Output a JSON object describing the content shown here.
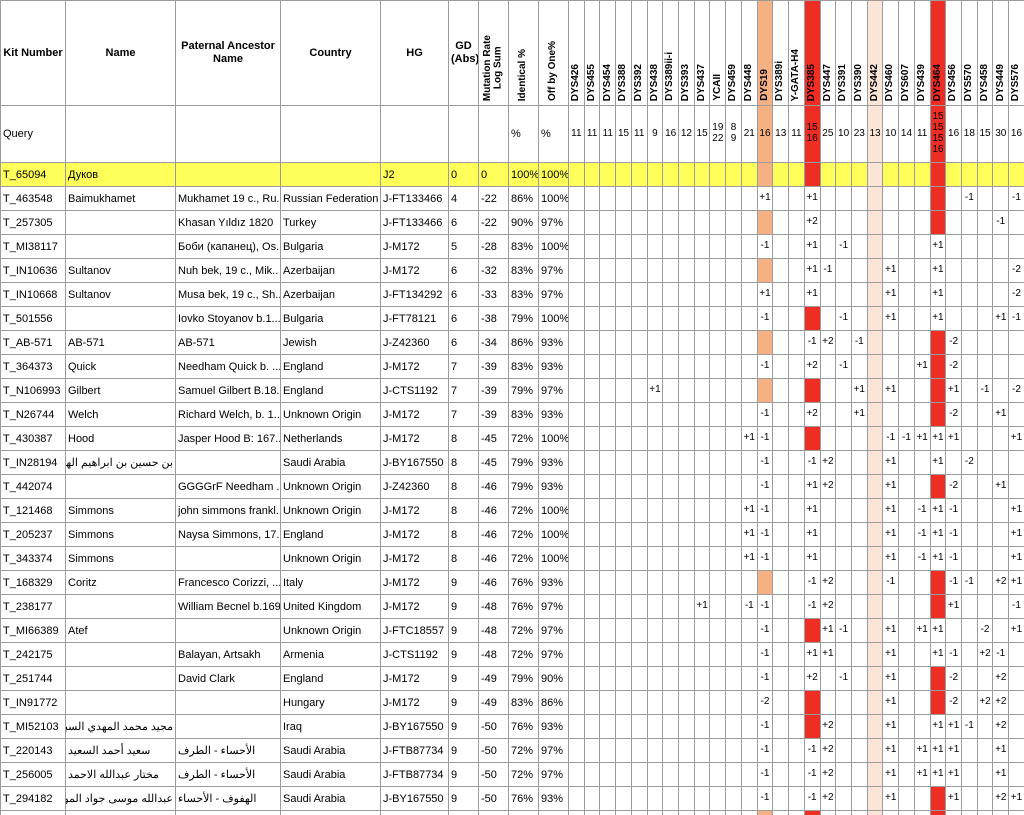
{
  "table": {
    "columns": {
      "kit": "Kit Number",
      "name": "Name",
      "ancestor": "Paternal Ancestor\nName",
      "country": "Country",
      "hg": "HG",
      "gd": "GD\n(Abs)",
      "stats": [
        "Mutation Rate\nLog Sum",
        "Identical %",
        "Off by One%"
      ]
    },
    "markers": [
      "DYS426",
      "DYS455",
      "DYS454",
      "DYS388",
      "DYS392",
      "DYS438",
      "DYS389ii-i",
      "DYS393",
      "DYS437",
      "YCAII",
      "DYS459",
      "DYS448",
      "DYS19",
      "DYS389i",
      "Y-GATA-H4",
      "DYS385",
      "DYS447",
      "DYS391",
      "DYS390",
      "DYS442",
      "DYS460",
      "DYS607",
      "DYS439",
      "DYS464",
      "DYS456",
      "DYS570",
      "DYS458",
      "DYS449",
      "DYS576"
    ],
    "marker_colors": {
      "DYS19": "#f5b183",
      "DYS385": "#ee2e24",
      "DYS442": "#fbe5d6",
      "DYS464": "#ee2e24"
    },
    "query": {
      "label": "Query",
      "identical_unit": "%",
      "offby_unit": "%",
      "values": [
        "11",
        "11",
        "11",
        "15",
        "11",
        "9",
        "16",
        "12",
        "15",
        "19\n22",
        "8\n9",
        "21",
        "16",
        "13",
        "11",
        "15\n16",
        "25",
        "10",
        "23",
        "13",
        "10",
        "14",
        "11",
        "15\n15\n15\n16",
        "16",
        "18",
        "15",
        "30",
        "16"
      ]
    },
    "rows": [
      {
        "kit": "T_65094",
        "name": "Дуков",
        "anc": "",
        "country": "",
        "hg": "J2",
        "gd": "0",
        "log": "0",
        "id": "100%",
        "off": "100%",
        "highlight": true,
        "diffs": {}
      },
      {
        "kit": "T_463548",
        "name": "Baimukhamet",
        "anc": "Mukhamet 19 c., Ru..",
        "country": "Russian Federation",
        "hg": "J-FT133466",
        "gd": "4",
        "log": "-22",
        "id": "86%",
        "off": "100%",
        "diffs": {
          "DYS19": "+1",
          "DYS385": "+1",
          "DYS570": "-1",
          "DYS576": "-1"
        }
      },
      {
        "kit": "T_257305",
        "name": "",
        "anc": "Khasan Yıldız 1820",
        "country": "Turkey",
        "hg": "J-FT133466",
        "gd": "6",
        "log": "-22",
        "id": "90%",
        "off": "97%",
        "diffs": {
          "DYS385": "+2",
          "DYS449": "-1"
        }
      },
      {
        "kit": "T_MI38117",
        "name": "",
        "anc": "Боби (капанец), Os..",
        "country": "Bulgaria",
        "hg": "J-M172",
        "gd": "5",
        "log": "-28",
        "id": "83%",
        "off": "100%",
        "diffs": {
          "DYS19": "-1",
          "DYS385": "+1",
          "DYS391": "-1",
          "DYS464": "+1"
        }
      },
      {
        "kit": "T_IN10636",
        "name": "Sultanov",
        "anc": "Nuh bek, 19 c., Mik..",
        "country": "Azerbaijan",
        "hg": "J-M172",
        "gd": "6",
        "log": "-32",
        "id": "83%",
        "off": "97%",
        "diffs": {
          "DYS385": "+1",
          "DYS447": "-1",
          "DYS460": "+1",
          "DYS464": "+1",
          "DYS576": "-2"
        }
      },
      {
        "kit": "T_IN10668",
        "name": "Sultanov",
        "anc": "Musa bek, 19 c., Sh..",
        "country": "Azerbaijan",
        "hg": "J-FT134292",
        "gd": "6",
        "log": "-33",
        "id": "83%",
        "off": "97%",
        "diffs": {
          "DYS19": "+1",
          "DYS385": "+1",
          "DYS460": "+1",
          "DYS464": "+1",
          "DYS576": "-2"
        }
      },
      {
        "kit": "T_501556",
        "name": "",
        "anc": "Iovko Stoyanov b.1...",
        "country": "Bulgaria",
        "hg": "J-FT78121",
        "gd": "6",
        "log": "-38",
        "id": "79%",
        "off": "100%",
        "diffs": {
          "DYS19": "-1",
          "DYS391": "-1",
          "DYS460": "+1",
          "DYS464": "+1",
          "DYS449": "+1",
          "DYS576": "-1"
        }
      },
      {
        "kit": "T_AB-571",
        "name": "AB-571",
        "anc": "AB-571",
        "country": "Jewish",
        "hg": "J-Z42360",
        "gd": "6",
        "log": "-34",
        "id": "86%",
        "off": "93%",
        "diffs": {
          "DYS385": "-1",
          "DYS447": "+2",
          "DYS390": "-1",
          "DYS456": "-2"
        }
      },
      {
        "kit": "T_364373",
        "name": "Quick",
        "anc": "Needham Quick b. ...",
        "country": "England",
        "hg": "J-M172",
        "gd": "7",
        "log": "-39",
        "id": "83%",
        "off": "93%",
        "diffs": {
          "DYS19": "-1",
          "DYS391": "-1",
          "DYS385": "+2",
          "DYS439": "+1",
          "DYS456": "-2"
        }
      },
      {
        "kit": "T_N106993",
        "name": "Gilbert",
        "anc": "Samuel Gilbert B.18...",
        "country": "England",
        "hg": "J-CTS1192",
        "gd": "7",
        "log": "-39",
        "id": "79%",
        "off": "97%",
        "diffs": {
          "DYS438": "+1",
          "DYS390": "+1",
          "DYS460": "+1",
          "DYS456": "+1",
          "DYS458": "-1",
          "DYS576": "-2"
        }
      },
      {
        "kit": "T_N26744",
        "name": "Welch",
        "anc": "Richard Welch, b. 1...",
        "country": "Unknown Origin",
        "hg": "J-M172",
        "gd": "7",
        "log": "-39",
        "id": "83%",
        "off": "93%",
        "diffs": {
          "DYS19": "-1",
          "DYS385": "+2",
          "DYS390": "+1",
          "DYS456": "-2",
          "DYS449": "+1"
        }
      },
      {
        "kit": "T_430387",
        "name": "Hood",
        "anc": "Jasper Hood B: 167...",
        "country": "Netherlands",
        "hg": "J-M172",
        "gd": "8",
        "log": "-45",
        "id": "72%",
        "off": "100%",
        "diffs": {
          "DYS448": "+1",
          "DYS19": "-1",
          "DYS460": "-1",
          "DYS607": "-1",
          "DYS439": "+1",
          "DYS464": "+1",
          "DYS456": "+1",
          "DYS576": "+1"
        }
      },
      {
        "kit": "T_IN28194",
        "name": "بن حسين بن ابراهيم الهلالي ...",
        "anc": "",
        "country": "Saudi Arabia",
        "hg": "J-BY167550",
        "gd": "8",
        "log": "-45",
        "id": "79%",
        "off": "93%",
        "diffs": {
          "DYS19": "-1",
          "DYS385": "-1",
          "DYS447": "+2",
          "DYS460": "+1",
          "DYS464": "+1",
          "DYS570": "-2"
        }
      },
      {
        "kit": "T_442074",
        "name": "",
        "anc": "GGGGrF Needham ...",
        "country": "Unknown Origin",
        "hg": "J-Z42360",
        "gd": "8",
        "log": "-46",
        "id": "79%",
        "off": "93%",
        "diffs": {
          "DYS19": "-1",
          "DYS385": "+1",
          "DYS447": "+2",
          "DYS460": "+1",
          "DYS456": "-2",
          "DYS449": "+1"
        }
      },
      {
        "kit": "T_121468",
        "name": "Simmons",
        "anc": "john simmons frankl...",
        "country": "Unknown Origin",
        "hg": "J-M172",
        "gd": "8",
        "log": "-46",
        "id": "72%",
        "off": "100%",
        "diffs": {
          "DYS448": "+1",
          "DYS19": "-1",
          "DYS385": "+1",
          "DYS460": "+1",
          "DYS439": "-1",
          "DYS464": "+1",
          "DYS456": "-1",
          "DYS576": "+1"
        }
      },
      {
        "kit": "T_205237",
        "name": "Simmons",
        "anc": "Naysa Simmons, 17...",
        "country": "England",
        "hg": "J-M172",
        "gd": "8",
        "log": "-46",
        "id": "72%",
        "off": "100%",
        "diffs": {
          "DYS448": "+1",
          "DYS19": "-1",
          "DYS385": "+1",
          "DYS460": "+1",
          "DYS439": "-1",
          "DYS464": "+1",
          "DYS456": "-1",
          "DYS576": "+1"
        }
      },
      {
        "kit": "T_343374",
        "name": "Simmons",
        "anc": "",
        "country": "Unknown Origin",
        "hg": "J-M172",
        "gd": "8",
        "log": "-46",
        "id": "72%",
        "off": "100%",
        "diffs": {
          "DYS448": "+1",
          "DYS19": "-1",
          "DYS385": "+1",
          "DYS460": "+1",
          "DYS439": "-1",
          "DYS464": "+1",
          "DYS456": "-1",
          "DYS576": "+1"
        }
      },
      {
        "kit": "T_168329",
        "name": "Coritz",
        "anc": "Francesco Corizzi, ...",
        "country": "Italy",
        "hg": "J-M172",
        "gd": "9",
        "log": "-46",
        "id": "76%",
        "off": "93%",
        "diffs": {
          "DYS385": "-1",
          "DYS447": "+2",
          "DYS460": "-1",
          "DYS456": "-1",
          "DYS570": "-1",
          "DYS449": "+2",
          "DYS576": "+1"
        }
      },
      {
        "kit": "T_238177",
        "name": "",
        "anc": "William Becnel b.1698",
        "country": "United Kingdom",
        "hg": "J-M172",
        "gd": "9",
        "log": "-48",
        "id": "76%",
        "off": "97%",
        "diffs": {
          "DYS437": "+1",
          "DYS448": "-1",
          "DYS19": "-1",
          "DYS385": "-1",
          "DYS447": "+2",
          "DYS456": "+1",
          "DYS576": "-1"
        }
      },
      {
        "kit": "T_MI66389",
        "name": "Atef",
        "anc": "",
        "country": "Unknown Origin",
        "hg": "J-FTC18557",
        "gd": "9",
        "log": "-48",
        "id": "72%",
        "off": "97%",
        "diffs": {
          "DYS19": "-1",
          "DYS447": "+1",
          "DYS391": "-1",
          "DYS460": "+1",
          "DYS439": "+1",
          "DYS464": "+1",
          "DYS458": "-2",
          "DYS576": "+1"
        }
      },
      {
        "kit": "T_242175",
        "name": "",
        "anc": "Balayan, Artsakh",
        "country": "Armenia",
        "hg": "J-CTS1192",
        "gd": "9",
        "log": "-48",
        "id": "72%",
        "off": "97%",
        "diffs": {
          "DYS19": "-1",
          "DYS385": "+1",
          "DYS447": "+1",
          "DYS460": "+1",
          "DYS464": "+1",
          "DYS456": "-1",
          "DYS458": "+2",
          "DYS449": "-1"
        }
      },
      {
        "kit": "T_251744",
        "name": "",
        "anc": "David Clark",
        "country": "England",
        "hg": "J-M172",
        "gd": "9",
        "log": "-49",
        "id": "79%",
        "off": "90%",
        "diffs": {
          "DYS19": "-1",
          "DYS391": "-1",
          "DYS385": "+2",
          "DYS460": "+1",
          "DYS456": "-2",
          "DYS449": "+2"
        }
      },
      {
        "kit": "T_IN91772",
        "name": "",
        "anc": "",
        "country": "Hungary",
        "hg": "J-M172",
        "gd": "9",
        "log": "-49",
        "id": "83%",
        "off": "86%",
        "diffs": {
          "DYS19": "-2",
          "DYS460": "+1",
          "DYS456": "-2",
          "DYS458": "+2",
          "DYS449": "+2"
        }
      },
      {
        "kit": "T_MI52103",
        "name": "مجيد محمد المهدي السبيعي ...",
        "anc": "",
        "country": "Iraq",
        "hg": "J-BY167550",
        "gd": "9",
        "log": "-50",
        "id": "76%",
        "off": "93%",
        "diffs": {
          "DYS19": "-1",
          "DYS447": "+2",
          "DYS460": "+1",
          "DYS464": "+1",
          "DYS456": "+1",
          "DYS570": "-1",
          "DYS449": "+2"
        }
      },
      {
        "kit": "T_220143",
        "name": "سعيد أحمد السعيد",
        "anc": "الأحساء - الطرف",
        "country": "Saudi Arabia",
        "hg": "J-FTB87734",
        "gd": "9",
        "log": "-50",
        "id": "72%",
        "off": "97%",
        "diffs": {
          "DYS19": "-1",
          "DYS385": "-1",
          "DYS447": "+2",
          "DYS460": "+1",
          "DYS439": "+1",
          "DYS464": "+1",
          "DYS456": "+1",
          "DYS449": "+1"
        }
      },
      {
        "kit": "T_256005",
        "name": "مختار عبدالله الاحمد",
        "anc": "الأحساء - الطرف",
        "country": "Saudi Arabia",
        "hg": "J-FTB87734",
        "gd": "9",
        "log": "-50",
        "id": "72%",
        "off": "97%",
        "diffs": {
          "DYS19": "-1",
          "DYS385": "-1",
          "DYS447": "+2",
          "DYS460": "+1",
          "DYS439": "+1",
          "DYS464": "+1",
          "DYS456": "+1",
          "DYS449": "+1"
        }
      },
      {
        "kit": "T_294182",
        "name": "عبدالله موسى جواد الموسى",
        "anc": "الهفوف - الأحساء",
        "country": "Saudi Arabia",
        "hg": "J-BY167550",
        "gd": "9",
        "log": "-50",
        "id": "76%",
        "off": "93%",
        "diffs": {
          "DYS19": "-1",
          "DYS385": "-1",
          "DYS447": "+2",
          "DYS460": "+1",
          "DYS456": "+1",
          "DYS449": "+2",
          "DYS576": "+1"
        }
      }
    ],
    "partial_row": {
      "kit": "",
      "name": "",
      "anc": "",
      "country": "",
      "hg": "",
      "gd": "",
      "log": "",
      "id": "",
      "off": "",
      "diffs": {}
    }
  }
}
